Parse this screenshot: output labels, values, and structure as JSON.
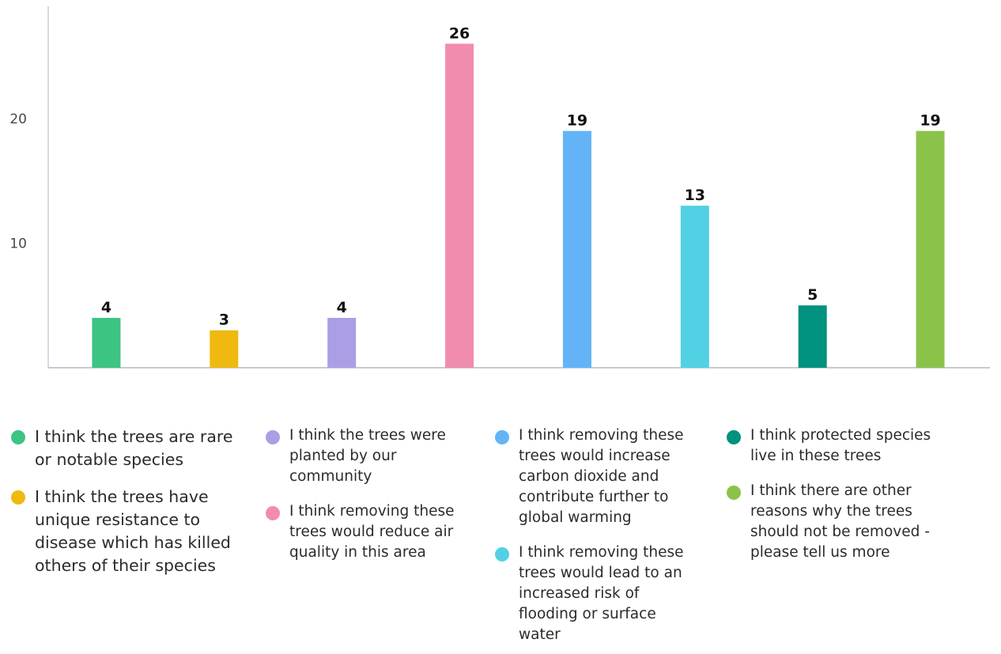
{
  "chart_data": {
    "type": "bar",
    "categories": [
      "I think the trees are rare or notable species",
      "I think the trees have unique resistance to disease which has killed others of their species",
      "I think the trees were planted by our community",
      "I think removing these trees would reduce air quality in this area",
      "I think removing these trees would increase carbon dioxide and contribute further to global warming",
      "I think removing these trees would lead to an increased risk of flooding or surface water",
      "I think protected species live in these trees",
      "I think there are other reasons why the trees should not be removed - please tell us more"
    ],
    "values": [
      4,
      3,
      4,
      26,
      19,
      13,
      5,
      19
    ],
    "value_labels": [
      "4",
      "3",
      "4",
      "26",
      "19",
      "13",
      "5",
      "19"
    ],
    "colors": [
      "#3cc483",
      "#f0b90f",
      "#ab9ee6",
      "#f28cae",
      "#62b4f6",
      "#51d1e3",
      "#00917f",
      "#8bc34a"
    ],
    "yticks": [
      10,
      20
    ],
    "ytick_labels": [
      "10",
      "20"
    ],
    "ylim": [
      0,
      29
    ],
    "grid": false,
    "title": "",
    "xlabel": "",
    "ylabel": "",
    "legend_position": "bottom"
  },
  "legend": {
    "items": [
      {
        "label": "I think the trees are rare or notable species",
        "color": "#3cc483"
      },
      {
        "label": "I think the trees have unique resistance to disease which has killed others of their species",
        "color": "#f0b90f"
      },
      {
        "label": "I think the trees were planted by our community",
        "color": "#ab9ee6"
      },
      {
        "label": "I think removing these trees would reduce air quality in this area",
        "color": "#f28cae"
      },
      {
        "label": "I think removing these trees would increase carbon dioxide and contribute further to global warming",
        "color": "#62b4f6"
      },
      {
        "label": "I think removing these trees would lead to an increased risk of flooding or surface water",
        "color": "#51d1e3"
      },
      {
        "label": "I think protected species live in these trees",
        "color": "#00917f"
      },
      {
        "label": "I think there are other reasons why the trees should not be removed - please tell us more",
        "color": "#8bc34a"
      }
    ]
  }
}
